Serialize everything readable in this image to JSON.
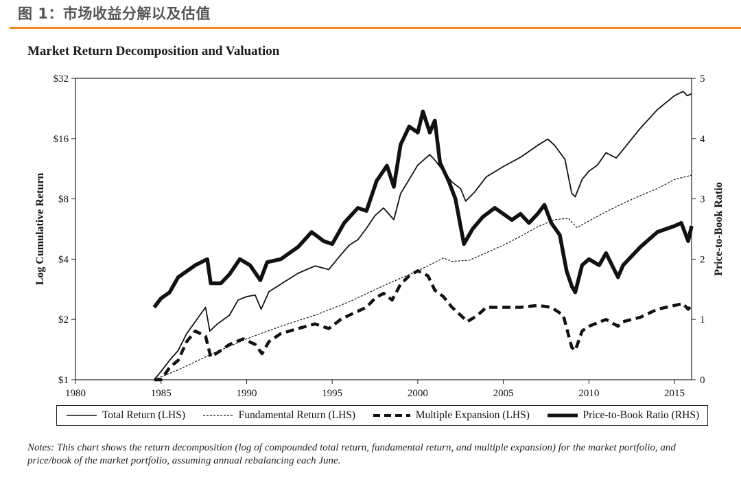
{
  "header": {
    "figure_label": "图 1：市场收益分解以及估值"
  },
  "chart_data": {
    "type": "line",
    "title": "Market Return Decomposition and Valuation",
    "ylabel": "Log Cumulative Return",
    "ylabel_right": "Price-to-Book Ratio",
    "xlim": [
      1980,
      2016
    ],
    "ylim": [
      1,
      32
    ],
    "yscale": "log2",
    "ylim_right": [
      0,
      5
    ],
    "x_ticks": [
      "1980",
      "1985",
      "1990",
      "1995",
      "2000",
      "2005",
      "2010",
      "2015"
    ],
    "y_ticks": [
      "$1",
      "$2",
      "$4",
      "$8",
      "$16",
      "$32"
    ],
    "y_ticks_right": [
      "0",
      "1",
      "2",
      "3",
      "4",
      "5"
    ],
    "legend_position": "bottom",
    "series": [
      {
        "name": "Total Return (LHS)",
        "axis": "left",
        "style": "solid-thin",
        "points": [
          [
            1984.6,
            1.0
          ],
          [
            1985.0,
            1.1
          ],
          [
            1985.5,
            1.25
          ],
          [
            1986.0,
            1.4
          ],
          [
            1986.5,
            1.7
          ],
          [
            1987.0,
            1.95
          ],
          [
            1987.6,
            2.3
          ],
          [
            1987.85,
            1.75
          ],
          [
            1988.3,
            1.9
          ],
          [
            1989.0,
            2.1
          ],
          [
            1989.5,
            2.5
          ],
          [
            1990.0,
            2.6
          ],
          [
            1990.5,
            2.65
          ],
          [
            1990.85,
            2.25
          ],
          [
            1991.3,
            2.75
          ],
          [
            1992.0,
            3.0
          ],
          [
            1993.0,
            3.4
          ],
          [
            1994.0,
            3.7
          ],
          [
            1994.8,
            3.55
          ],
          [
            1995.5,
            4.2
          ],
          [
            1996.0,
            4.7
          ],
          [
            1996.5,
            5.0
          ],
          [
            1997.0,
            5.7
          ],
          [
            1997.5,
            6.6
          ],
          [
            1998.0,
            7.2
          ],
          [
            1998.6,
            6.3
          ],
          [
            1999.0,
            8.5
          ],
          [
            1999.5,
            10.0
          ],
          [
            2000.0,
            11.8
          ],
          [
            2000.7,
            13.3
          ],
          [
            2001.0,
            12.5
          ],
          [
            2001.5,
            11.0
          ],
          [
            2002.0,
            9.7
          ],
          [
            2002.5,
            9.0
          ],
          [
            2002.8,
            7.8
          ],
          [
            2003.3,
            8.6
          ],
          [
            2004.0,
            10.3
          ],
          [
            2005.0,
            11.6
          ],
          [
            2006.0,
            12.9
          ],
          [
            2007.0,
            14.8
          ],
          [
            2007.6,
            15.9
          ],
          [
            2008.0,
            14.8
          ],
          [
            2008.6,
            12.6
          ],
          [
            2009.0,
            8.5
          ],
          [
            2009.2,
            8.2
          ],
          [
            2009.6,
            10.0
          ],
          [
            2010.0,
            11.0
          ],
          [
            2010.5,
            11.8
          ],
          [
            2011.0,
            13.6
          ],
          [
            2011.6,
            12.8
          ],
          [
            2012.0,
            14.1
          ],
          [
            2013.0,
            18.0
          ],
          [
            2014.0,
            22.3
          ],
          [
            2015.0,
            26.2
          ],
          [
            2015.5,
            27.5
          ],
          [
            2015.75,
            26.2
          ],
          [
            2016.0,
            26.8
          ]
        ]
      },
      {
        "name": "Fundamental Return (LHS)",
        "axis": "left",
        "style": "dotted",
        "points": [
          [
            1984.6,
            1.0
          ],
          [
            1986.0,
            1.12
          ],
          [
            1988.0,
            1.35
          ],
          [
            1990.0,
            1.6
          ],
          [
            1992.0,
            1.85
          ],
          [
            1994.0,
            2.1
          ],
          [
            1996.0,
            2.45
          ],
          [
            1998.0,
            2.95
          ],
          [
            2000.0,
            3.5
          ],
          [
            2001.5,
            4.05
          ],
          [
            2002.0,
            3.9
          ],
          [
            2003.0,
            3.95
          ],
          [
            2004.0,
            4.3
          ],
          [
            2005.0,
            4.7
          ],
          [
            2006.0,
            5.2
          ],
          [
            2007.0,
            5.8
          ],
          [
            2008.0,
            6.3
          ],
          [
            2008.8,
            6.4
          ],
          [
            2009.3,
            5.75
          ],
          [
            2010.0,
            6.2
          ],
          [
            2011.0,
            6.9
          ],
          [
            2012.0,
            7.6
          ],
          [
            2013.0,
            8.3
          ],
          [
            2014.0,
            9.0
          ],
          [
            2015.0,
            10.0
          ],
          [
            2016.0,
            10.5
          ]
        ]
      },
      {
        "name": "Multiple Expansion (LHS)",
        "axis": "left",
        "style": "dashed-thick",
        "points": [
          [
            1984.6,
            1.0
          ],
          [
            1985.0,
            1.0
          ],
          [
            1985.5,
            1.15
          ],
          [
            1986.0,
            1.25
          ],
          [
            1986.5,
            1.55
          ],
          [
            1987.0,
            1.75
          ],
          [
            1987.6,
            1.65
          ],
          [
            1987.9,
            1.3
          ],
          [
            1988.5,
            1.4
          ],
          [
            1989.0,
            1.5
          ],
          [
            1989.8,
            1.6
          ],
          [
            1990.5,
            1.5
          ],
          [
            1990.9,
            1.35
          ],
          [
            1991.3,
            1.55
          ],
          [
            1992.0,
            1.7
          ],
          [
            1993.0,
            1.8
          ],
          [
            1994.0,
            1.9
          ],
          [
            1994.8,
            1.8
          ],
          [
            1995.5,
            2.0
          ],
          [
            1996.0,
            2.1
          ],
          [
            1997.0,
            2.3
          ],
          [
            1997.5,
            2.55
          ],
          [
            1998.0,
            2.7
          ],
          [
            1998.5,
            2.5
          ],
          [
            1999.0,
            3.0
          ],
          [
            1999.5,
            3.3
          ],
          [
            2000.0,
            3.5
          ],
          [
            2000.6,
            3.3
          ],
          [
            2001.0,
            2.8
          ],
          [
            2001.5,
            2.6
          ],
          [
            2002.0,
            2.3
          ],
          [
            2002.5,
            2.1
          ],
          [
            2002.9,
            1.95
          ],
          [
            2003.5,
            2.1
          ],
          [
            2004.0,
            2.3
          ],
          [
            2005.0,
            2.3
          ],
          [
            2006.0,
            2.3
          ],
          [
            2007.0,
            2.35
          ],
          [
            2007.8,
            2.3
          ],
          [
            2008.5,
            2.1
          ],
          [
            2009.0,
            1.45
          ],
          [
            2009.2,
            1.4
          ],
          [
            2009.6,
            1.75
          ],
          [
            2010.0,
            1.85
          ],
          [
            2011.0,
            2.0
          ],
          [
            2011.7,
            1.85
          ],
          [
            2012.0,
            1.95
          ],
          [
            2013.0,
            2.05
          ],
          [
            2014.0,
            2.25
          ],
          [
            2015.0,
            2.35
          ],
          [
            2015.5,
            2.4
          ],
          [
            2015.8,
            2.25
          ],
          [
            2016.0,
            2.35
          ]
        ]
      },
      {
        "name": "Price-to-Book Ratio (RHS)",
        "axis": "right",
        "style": "solid-thick",
        "points": [
          [
            1984.6,
            1.2
          ],
          [
            1985.0,
            1.35
          ],
          [
            1985.5,
            1.45
          ],
          [
            1986.0,
            1.7
          ],
          [
            1986.5,
            1.8
          ],
          [
            1987.0,
            1.9
          ],
          [
            1987.7,
            2.0
          ],
          [
            1987.9,
            1.6
          ],
          [
            1988.5,
            1.6
          ],
          [
            1989.0,
            1.75
          ],
          [
            1989.6,
            2.0
          ],
          [
            1990.2,
            1.9
          ],
          [
            1990.8,
            1.65
          ],
          [
            1991.2,
            1.95
          ],
          [
            1992.0,
            2.0
          ],
          [
            1993.0,
            2.2
          ],
          [
            1993.8,
            2.45
          ],
          [
            1994.5,
            2.3
          ],
          [
            1995.0,
            2.25
          ],
          [
            1995.7,
            2.6
          ],
          [
            1996.5,
            2.85
          ],
          [
            1997.0,
            2.8
          ],
          [
            1997.6,
            3.3
          ],
          [
            1998.2,
            3.55
          ],
          [
            1998.6,
            3.2
          ],
          [
            1999.0,
            3.9
          ],
          [
            1999.5,
            4.2
          ],
          [
            2000.0,
            4.1
          ],
          [
            2000.3,
            4.45
          ],
          [
            2000.7,
            4.1
          ],
          [
            2001.0,
            4.3
          ],
          [
            2001.3,
            3.6
          ],
          [
            2001.8,
            3.3
          ],
          [
            2002.2,
            3.0
          ],
          [
            2002.7,
            2.25
          ],
          [
            2003.2,
            2.5
          ],
          [
            2003.8,
            2.7
          ],
          [
            2004.5,
            2.85
          ],
          [
            2005.0,
            2.75
          ],
          [
            2005.5,
            2.65
          ],
          [
            2006.0,
            2.75
          ],
          [
            2006.5,
            2.6
          ],
          [
            2007.0,
            2.75
          ],
          [
            2007.4,
            2.9
          ],
          [
            2007.8,
            2.6
          ],
          [
            2008.3,
            2.4
          ],
          [
            2008.7,
            1.8
          ],
          [
            2009.0,
            1.55
          ],
          [
            2009.2,
            1.45
          ],
          [
            2009.6,
            1.9
          ],
          [
            2010.0,
            2.0
          ],
          [
            2010.6,
            1.9
          ],
          [
            2011.0,
            2.1
          ],
          [
            2011.7,
            1.7
          ],
          [
            2012.0,
            1.9
          ],
          [
            2013.0,
            2.2
          ],
          [
            2014.0,
            2.45
          ],
          [
            2015.0,
            2.55
          ],
          [
            2015.4,
            2.6
          ],
          [
            2015.8,
            2.3
          ],
          [
            2016.0,
            2.55
          ]
        ]
      }
    ]
  },
  "legend": {
    "items": [
      "Total Return (LHS)",
      "Fundamental Return (LHS)",
      "Multiple Expansion (LHS)",
      "Price-to-Book Ratio (RHS)"
    ]
  },
  "notes": {
    "text": "Notes: This chart shows the return decomposition (log of compounded total return, fundamental return, and multiple expansion) for the market portfolio, and price/book of the market portfolio, assuming annual rebalancing each June."
  }
}
